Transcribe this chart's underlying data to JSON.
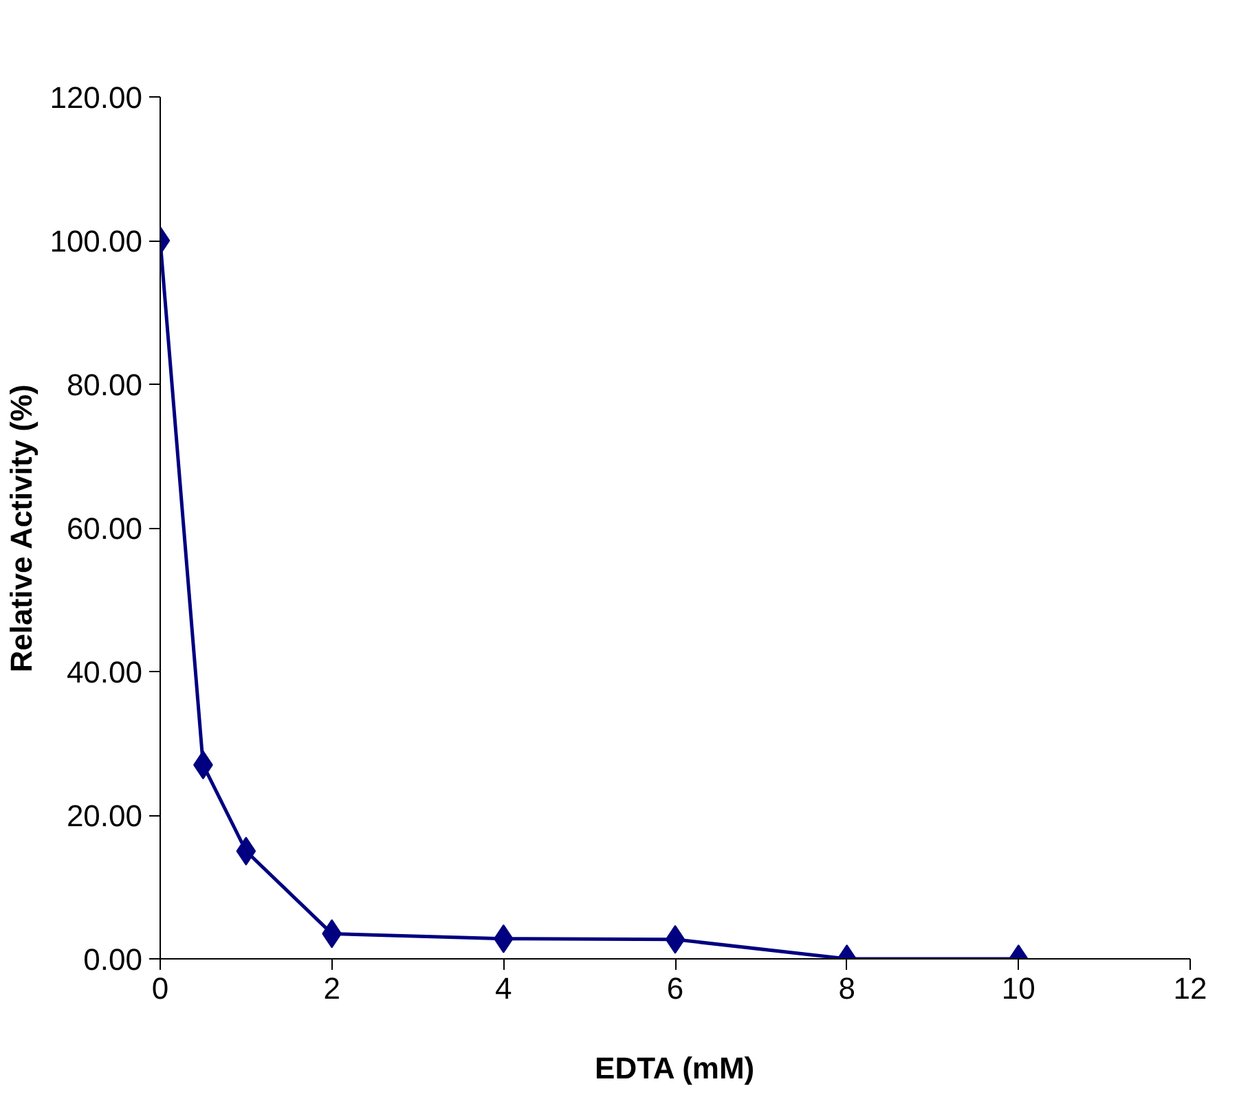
{
  "chart_data": {
    "type": "line",
    "xlabel": "EDTA (mM)",
    "ylabel": "Relative Activity (%)",
    "x": [
      0,
      0.5,
      1,
      2,
      4,
      6,
      8,
      10
    ],
    "series": [
      {
        "color": "#000080",
        "values": [
          100,
          27,
          15,
          3.5,
          2.8,
          2.7,
          0,
          0
        ]
      }
    ],
    "xlim": [
      0,
      12
    ],
    "xticks": [
      0,
      2,
      4,
      6,
      8,
      10,
      12
    ],
    "ylim": [
      0,
      120
    ],
    "yticks": [
      {
        "value": 0,
        "label": "0.00"
      },
      {
        "value": 20,
        "label": "20.00"
      },
      {
        "value": 40,
        "label": "40.00"
      },
      {
        "value": 60,
        "label": "60.00"
      },
      {
        "value": 80,
        "label": "80.00"
      },
      {
        "value": 100,
        "label": "100.00"
      },
      {
        "value": 120,
        "label": "120.00"
      }
    ],
    "grid": false,
    "marker": "diamond",
    "line_style": "solid"
  }
}
